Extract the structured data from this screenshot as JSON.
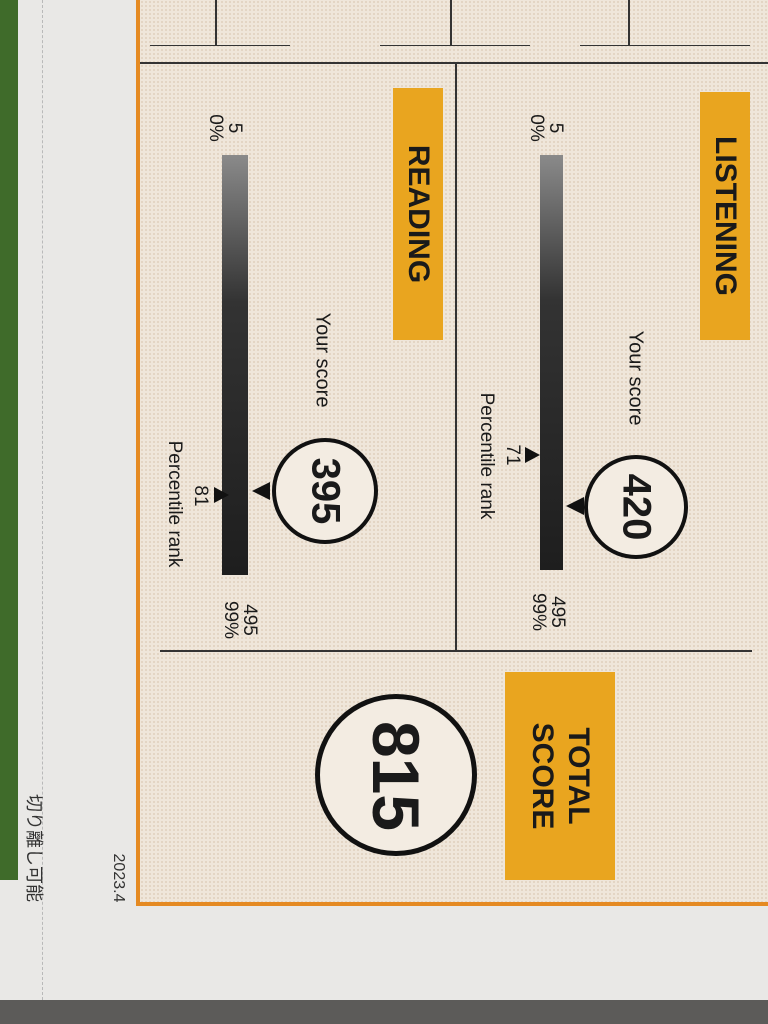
{
  "listening": {
    "label": "LISTENING",
    "min_score": "5",
    "min_pct": "0%",
    "max_score": "495",
    "max_pct": "99%",
    "your_score_label": "Your score",
    "score": "420",
    "percentile": "71",
    "percentile_label": "Percentile rank"
  },
  "reading": {
    "label": "READING",
    "min_score": "5",
    "min_pct": "0%",
    "max_score": "495",
    "max_pct": "99%",
    "your_score_label": "Your score",
    "score": "395",
    "percentile": "81",
    "percentile_label": "Percentile rank"
  },
  "total": {
    "label": "TOTAL SCORE",
    "score": "815"
  },
  "footer": {
    "date": "2023.4",
    "detach_note": "切り離し可能"
  },
  "colors": {
    "badge": "#e9a51f",
    "border": "#e58a22",
    "paper": "#efe6da"
  }
}
